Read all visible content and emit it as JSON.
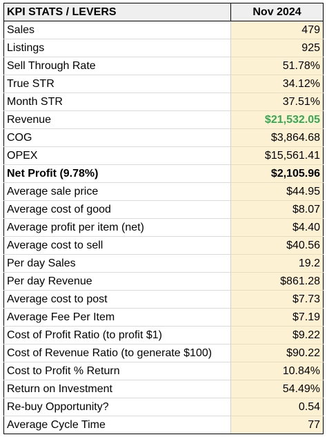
{
  "table": {
    "header": {
      "label": "KPI STATS / LEVERS",
      "value": "Nov 2024"
    },
    "rows": [
      {
        "label": "Sales",
        "value": "479"
      },
      {
        "label": "Listings",
        "value": "925"
      },
      {
        "label": "Sell Through Rate",
        "value": "51.78%"
      },
      {
        "label": "True STR",
        "value": "34.12%"
      },
      {
        "label": "Month STR",
        "value": "37.51%"
      },
      {
        "label": "Revenue",
        "value": "$21,532.05"
      },
      {
        "label": "COG",
        "value": "$3,864.68"
      },
      {
        "label": "OPEX",
        "value": "$15,561.41"
      },
      {
        "label": "Net Profit (9.78%)",
        "value": "$2,105.96"
      },
      {
        "label": "Average sale price",
        "value": "$44.95"
      },
      {
        "label": "Average cost of good",
        "value": "$8.07"
      },
      {
        "label": "Average profit per item (net)",
        "value": "$4.40"
      },
      {
        "label": "Average cost to sell",
        "value": "$40.56"
      },
      {
        "label": "Per day Sales",
        "value": "19.2"
      },
      {
        "label": "Per day Revenue",
        "value": "$861.28"
      },
      {
        "label": "Average cost to post",
        "value": "$7.73"
      },
      {
        "label": "Average Fee Per Item",
        "value": "$7.19"
      },
      {
        "label": "Cost of Profit Ratio (to profit $1)",
        "value": "$9.22"
      },
      {
        "label": "Cost of Revenue Ratio (to generate $100)",
        "value": "$90.22"
      },
      {
        "label": "Cost to Profit % Return",
        "value": "10.84%"
      },
      {
        "label": "Return on Investment",
        "value": "54.49%"
      },
      {
        "label": "Re-buy Opportunity?",
        "value": "0.54"
      },
      {
        "label": "Average Cycle Time",
        "value": "77"
      }
    ],
    "colors": {
      "header_bg": "#efefef",
      "value_bg": "#fdf1d3",
      "revenue_text": "#34a853"
    }
  }
}
